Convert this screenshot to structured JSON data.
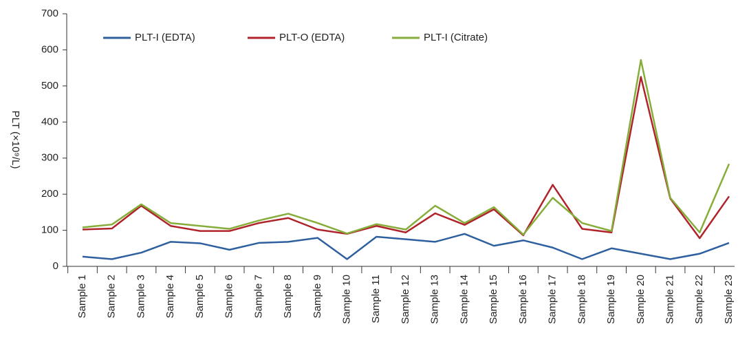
{
  "chart_data": {
    "type": "line",
    "y_label": "PLT (×10⁹/L)",
    "categories": [
      "Sample 1",
      "Sample 2",
      "Sample 3",
      "Sample 4",
      "Sample 5",
      "Sample 6",
      "Sample 7",
      "Sample 8",
      "Sample 9",
      "Sample 10",
      "Sample 11",
      "Sample 12",
      "Sample 13",
      "Sample 14",
      "Sample 15",
      "Sample 16",
      "Sample 17",
      "Sample 18",
      "Sample 19",
      "Sample 20",
      "Sample 21",
      "Sample 22",
      "Sample 23"
    ],
    "series": [
      {
        "name": "PLT-I (EDTA)",
        "color": "#2e5f9e",
        "values": [
          27,
          20,
          38,
          68,
          64,
          46,
          65,
          68,
          79,
          20,
          82,
          75,
          68,
          90,
          57,
          72,
          52,
          20,
          50,
          35,
          20,
          35,
          65
        ]
      },
      {
        "name": "PLT-O (EDTA)",
        "color": "#b0232a",
        "values": [
          102,
          105,
          168,
          112,
          98,
          98,
          120,
          134,
          102,
          90,
          112,
          94,
          147,
          115,
          158,
          86,
          226,
          104,
          94,
          525,
          188,
          78,
          194
        ]
      },
      {
        "name": "PLT-I (Citrate)",
        "color": "#86ad3a",
        "values": [
          108,
          116,
          172,
          120,
          112,
          104,
          127,
          146,
          120,
          91,
          117,
          102,
          168,
          120,
          164,
          88,
          190,
          120,
          98,
          572,
          190,
          94,
          284
        ]
      }
    ],
    "ylim": [
      0,
      700
    ],
    "yticks": [
      0,
      100,
      200,
      300,
      400,
      500,
      600,
      700
    ],
    "grid": false,
    "legend": "top"
  }
}
